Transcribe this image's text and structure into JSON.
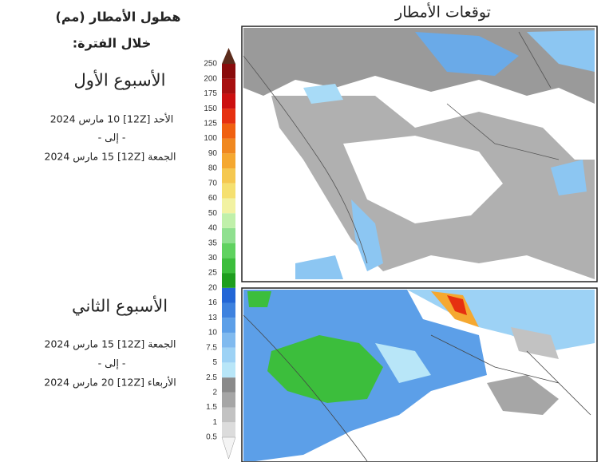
{
  "map_title": "توقعات الأمطار",
  "legend": {
    "title": "هطول الأمطار (مم)",
    "subtitle": "خلال الفترة:",
    "ticks": [
      0.5,
      1,
      1.5,
      2,
      2.5,
      5,
      7.5,
      10,
      13,
      16,
      20,
      25,
      30,
      35,
      40,
      50,
      60,
      70,
      80,
      90,
      100,
      125,
      150,
      175,
      200,
      250
    ],
    "colors": [
      "#dcdcdc",
      "#c2c2c2",
      "#a6a6a6",
      "#8a8a8a",
      "#b8e6f8",
      "#9dd2f5",
      "#80baef",
      "#5c9fe8",
      "#3e82df",
      "#2366d6",
      "#1e9e1e",
      "#3cbe3c",
      "#5fd25f",
      "#8fe08f",
      "#c0f0aa",
      "#f2f2a2",
      "#f5e070",
      "#f5c850",
      "#f5a830",
      "#f08820",
      "#f06010",
      "#e63010",
      "#cc1010",
      "#a81010",
      "#8a0c0c"
    ],
    "under_color": "#f4f4f4",
    "over_color": "#5c2c1c"
  },
  "periods": [
    {
      "label": "الأسبوع الأول",
      "from": "الأحد [12Z] 10 مارس 2024",
      "to_word": "- إلى -",
      "to": "الجمعة [12Z] 15 مارس 2024"
    },
    {
      "label": "الأسبوع الثاني",
      "from": "الجمعة [12Z] 15 مارس 2024",
      "to_word": "- إلى -",
      "to": "الأربعاء [12Z] 20 مارس 2024"
    }
  ]
}
